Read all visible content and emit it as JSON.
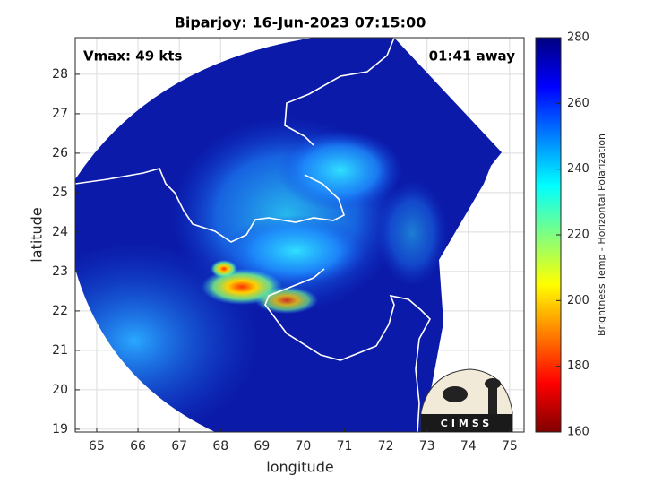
{
  "chart_data": {
    "type": "heatmap",
    "title": "Biparjoy: 16-Jun-2023 07:15:00",
    "annotations": [
      "Vmax: 49 kts",
      "01:41 away"
    ],
    "xlabel": "longitude",
    "ylabel": "latitude",
    "xlim": [
      64.48,
      75.35
    ],
    "ylim": [
      18.93,
      28.93
    ],
    "xticks": [
      65,
      66,
      67,
      68,
      69,
      70,
      71,
      72,
      73,
      74,
      75
    ],
    "yticks": [
      19,
      20,
      21,
      22,
      23,
      24,
      25,
      26,
      27,
      28
    ],
    "grid": true,
    "colorbar": {
      "label": "Brightness Temp - Horizontal Polarization",
      "lim": [
        160,
        280
      ],
      "ticks": [
        160,
        180,
        200,
        220,
        240,
        260,
        280
      ],
      "colormap": "jet"
    },
    "logo": "CIMSS"
  }
}
